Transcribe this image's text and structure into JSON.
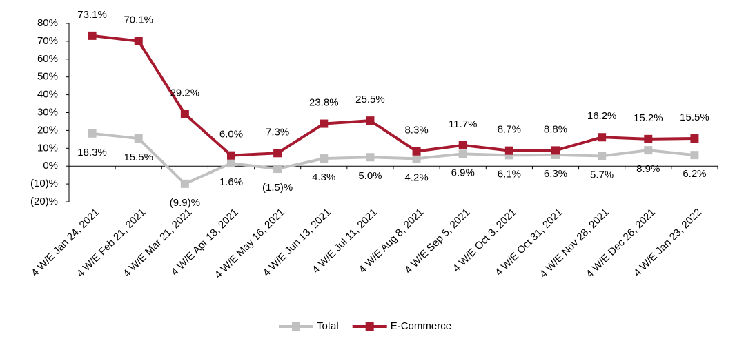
{
  "chart_data": {
    "type": "line",
    "categories": [
      "4 W/E Jan 24, 2021",
      "4 W/E Feb 21, 2021",
      "4 W/E Mar 21, 2021",
      "4 W/E Apr 18, 2021",
      "4 W/E May 16, 2021",
      "4 W/E Jun 13, 2021",
      "4 W/E Jul 11, 2021",
      "4 W/E Aug 8, 2021",
      "4 W/E Sep 5, 2021",
      "4 W/E Oct 3, 2021",
      "4 W/E Oct 31, 2021",
      "4 W/E Nov 28, 2021",
      "4 W/E Dec 26, 2021",
      "4 W/E Jan 23, 2022"
    ],
    "series": [
      {
        "name": "Total",
        "color": "#c0c0c0",
        "values": [
          18.3,
          15.5,
          -9.9,
          1.6,
          -1.5,
          4.3,
          5.0,
          4.2,
          6.9,
          6.1,
          6.3,
          5.7,
          8.9,
          6.2
        ],
        "value_labels": [
          "18.3%",
          "15.5%",
          "(9.9)%",
          "1.6%",
          "(1.5)%",
          "4.3%",
          "5.0%",
          "4.2%",
          "6.9%",
          "6.1%",
          "6.3%",
          "5.7%",
          "8.9%",
          "6.2%"
        ]
      },
      {
        "name": "E-Commerce",
        "color": "#a6192e",
        "values": [
          73.1,
          70.1,
          29.2,
          6.0,
          7.3,
          23.8,
          25.5,
          8.3,
          11.7,
          8.7,
          8.8,
          16.2,
          15.2,
          15.5
        ],
        "value_labels": [
          "73.1%",
          "70.1%",
          "29.2%",
          "6.0%",
          "7.3%",
          "23.8%",
          "25.5%",
          "8.3%",
          "11.7%",
          "8.7%",
          "8.8%",
          "16.2%",
          "15.2%",
          "15.5%"
        ]
      }
    ],
    "ylim": [
      -20,
      80
    ],
    "yticks": [
      {
        "value": -20,
        "label": "(20)%"
      },
      {
        "value": -10,
        "label": "(10)%"
      },
      {
        "value": 0,
        "label": "0%"
      },
      {
        "value": 10,
        "label": "10%"
      },
      {
        "value": 20,
        "label": "20%"
      },
      {
        "value": 30,
        "label": "30%"
      },
      {
        "value": 40,
        "label": "40%"
      },
      {
        "value": 50,
        "label": "50%"
      },
      {
        "value": 60,
        "label": "60%"
      },
      {
        "value": 70,
        "label": "70%"
      },
      {
        "value": 80,
        "label": "80%"
      }
    ],
    "legend": "bottom"
  }
}
